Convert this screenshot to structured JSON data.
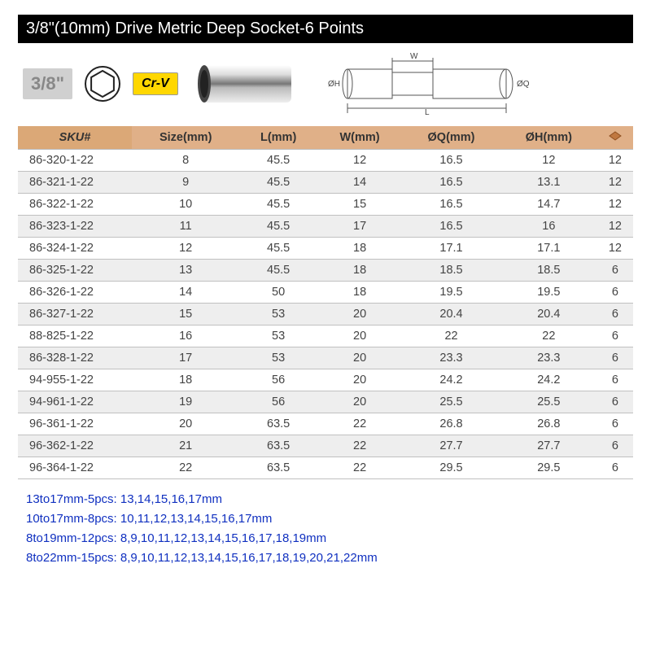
{
  "title": "3/8\"(10mm) Drive Metric Deep Socket-6 Points",
  "badges": {
    "drive": "3/8\"",
    "material": "Cr-V"
  },
  "diagram_labels": {
    "W": "W",
    "L": "L",
    "H": "ØH",
    "Q": "ØQ"
  },
  "table": {
    "columns": [
      "SKU#",
      "Size(mm)",
      "L(mm)",
      "W(mm)",
      "ØQ(mm)",
      "ØH(mm)",
      "◆"
    ],
    "col_widths": [
      "140px",
      "auto",
      "auto",
      "auto",
      "auto",
      "auto",
      "auto"
    ],
    "header_bg": "#e0b088",
    "header_bg_first": "#dba877",
    "row_even_bg": "#eeeeee",
    "border_color": "#c0c0c0",
    "rows": [
      [
        "86-320-1-22",
        "8",
        "45.5",
        "12",
        "16.5",
        "12",
        "12"
      ],
      [
        "86-321-1-22",
        "9",
        "45.5",
        "14",
        "16.5",
        "13.1",
        "12"
      ],
      [
        "86-322-1-22",
        "10",
        "45.5",
        "15",
        "16.5",
        "14.7",
        "12"
      ],
      [
        "86-323-1-22",
        "11",
        "45.5",
        "17",
        "16.5",
        "16",
        "12"
      ],
      [
        "86-324-1-22",
        "12",
        "45.5",
        "18",
        "17.1",
        "17.1",
        "12"
      ],
      [
        "86-325-1-22",
        "13",
        "45.5",
        "18",
        "18.5",
        "18.5",
        "6"
      ],
      [
        "86-326-1-22",
        "14",
        "50",
        "18",
        "19.5",
        "19.5",
        "6"
      ],
      [
        "86-327-1-22",
        "15",
        "53",
        "20",
        "20.4",
        "20.4",
        "6"
      ],
      [
        "88-825-1-22",
        "16",
        "53",
        "20",
        "22",
        "22",
        "6"
      ],
      [
        "86-328-1-22",
        "17",
        "53",
        "20",
        "23.3",
        "23.3",
        "6"
      ],
      [
        "94-955-1-22",
        "18",
        "56",
        "20",
        "24.2",
        "24.2",
        "6"
      ],
      [
        "94-961-1-22",
        "19",
        "56",
        "20",
        "25.5",
        "25.5",
        "6"
      ],
      [
        "96-361-1-22",
        "20",
        "63.5",
        "22",
        "26.8",
        "26.8",
        "6"
      ],
      [
        "96-362-1-22",
        "21",
        "63.5",
        "22",
        "27.7",
        "27.7",
        "6"
      ],
      [
        "96-364-1-22",
        "22",
        "63.5",
        "22",
        "29.5",
        "29.5",
        "6"
      ]
    ]
  },
  "sets": [
    "13to17mm-5pcs: 13,14,15,16,17mm",
    "10to17mm-8pcs: 10,11,12,13,14,15,16,17mm",
    "8to19mm-12pcs: 8,9,10,11,12,13,14,15,16,17,18,19mm",
    "8to22mm-15pcs: 8,9,10,11,12,13,14,15,16,17,18,19,20,21,22mm"
  ],
  "colors": {
    "title_bg": "#000000",
    "title_fg": "#ffffff",
    "set_link": "#1030c0",
    "crv_bg": "#ffd700",
    "drive_bg": "#d0d0d0"
  }
}
